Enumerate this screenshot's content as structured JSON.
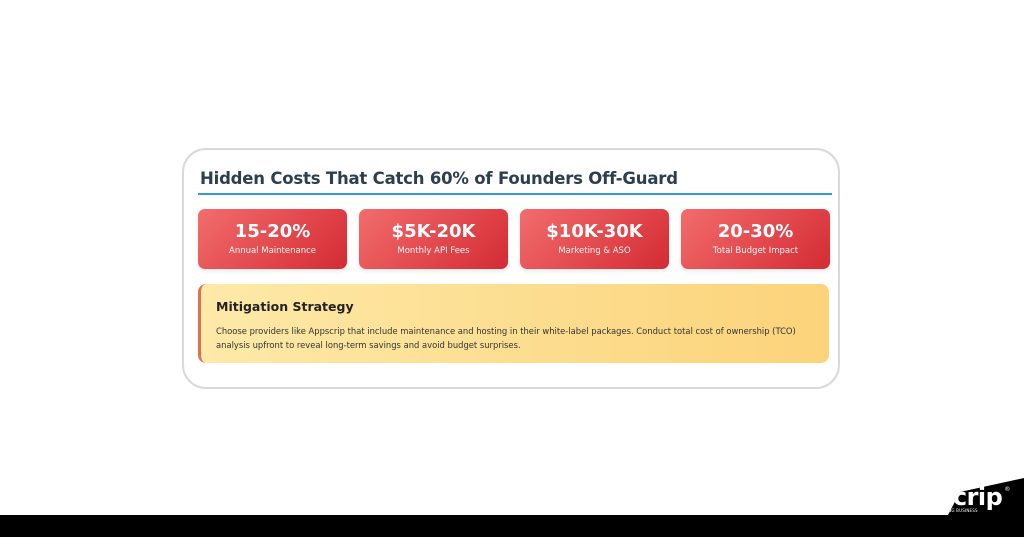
{
  "card": {
    "title": "Hidden Costs That Catch 60% of Founders Off-Guard",
    "stats": [
      {
        "value": "15-20%",
        "label": "Annual Maintenance"
      },
      {
        "value": "$5K-20K",
        "label": "Monthly API Fees"
      },
      {
        "value": "$10K-30K",
        "label": "Marketing & ASO"
      },
      {
        "value": "20-30%",
        "label": "Total Budget Impact"
      }
    ],
    "mitigation": {
      "heading": "Mitigation Strategy",
      "text": "Choose providers like Appscrip that include maintenance and hosting in their white-label packages. Conduct total cost of ownership (TCO) analysis upfront to reveal long-term savings and avoid budget surprises."
    }
  },
  "brand": {
    "name": "appscrip",
    "tagline": "ACCELERATING BUSINESS",
    "registered": "®"
  },
  "colors": {
    "accent": "#3498db",
    "stat": "#e0383f",
    "title": "#2c3e50",
    "footer": "#000000"
  }
}
